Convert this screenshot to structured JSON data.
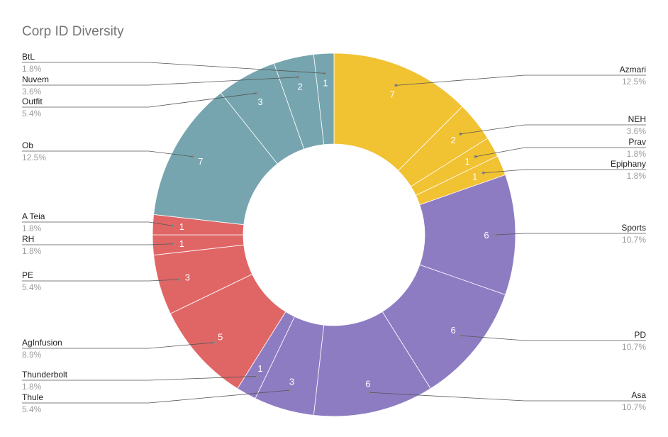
{
  "chart_data": {
    "type": "pie",
    "variant": "donut",
    "title": "Corp ID Diversity",
    "colors": {
      "yellow": "#F1C232",
      "purple": "#8E7CC3",
      "red": "#E06666",
      "teal": "#76A5AF",
      "separator": "#ffffff"
    },
    "slices": [
      {
        "label": "Azmari",
        "value": 7,
        "percent": "12.5%",
        "color": "#F1C232",
        "side": "right"
      },
      {
        "label": "NEH",
        "value": 2,
        "percent": "3.6%",
        "color": "#F1C232",
        "side": "right"
      },
      {
        "label": "Prav",
        "value": 1,
        "percent": "1.8%",
        "color": "#F1C232",
        "side": "right"
      },
      {
        "label": "Epiphany",
        "value": 1,
        "percent": "1.8%",
        "color": "#F1C232",
        "side": "right"
      },
      {
        "label": "Sports",
        "value": 6,
        "percent": "10.7%",
        "color": "#8E7CC3",
        "side": "right"
      },
      {
        "label": "PD",
        "value": 6,
        "percent": "10.7%",
        "color": "#8E7CC3",
        "side": "right"
      },
      {
        "label": "Asa",
        "value": 6,
        "percent": "10.7%",
        "color": "#8E7CC3",
        "side": "right"
      },
      {
        "label": "Thule",
        "value": 3,
        "percent": "5.4%",
        "color": "#8E7CC3",
        "side": "left"
      },
      {
        "label": "Thunderbolt",
        "value": 1,
        "percent": "1.8%",
        "color": "#8E7CC3",
        "side": "left"
      },
      {
        "label": "AgInfusion",
        "value": 5,
        "percent": "8.9%",
        "color": "#E06666",
        "side": "left"
      },
      {
        "label": "PE",
        "value": 3,
        "percent": "5.4%",
        "color": "#E06666",
        "side": "left"
      },
      {
        "label": "RH",
        "value": 1,
        "percent": "1.8%",
        "color": "#E06666",
        "side": "left"
      },
      {
        "label": "A Teia",
        "value": 1,
        "percent": "1.8%",
        "color": "#E06666",
        "side": "left"
      },
      {
        "label": "Ob",
        "value": 7,
        "percent": "12.5%",
        "color": "#76A5AF",
        "side": "left"
      },
      {
        "label": "Outfit",
        "value": 3,
        "percent": "5.4%",
        "color": "#76A5AF",
        "side": "left"
      },
      {
        "label": "Nuvem",
        "value": 2,
        "percent": "3.6%",
        "color": "#76A5AF",
        "side": "left"
      },
      {
        "label": "BtL",
        "value": 1,
        "percent": "1.8%",
        "color": "#76A5AF",
        "side": "left"
      }
    ],
    "legend": "none",
    "slice_labels": "value",
    "outside_labels": "name and percent with leader lines"
  }
}
